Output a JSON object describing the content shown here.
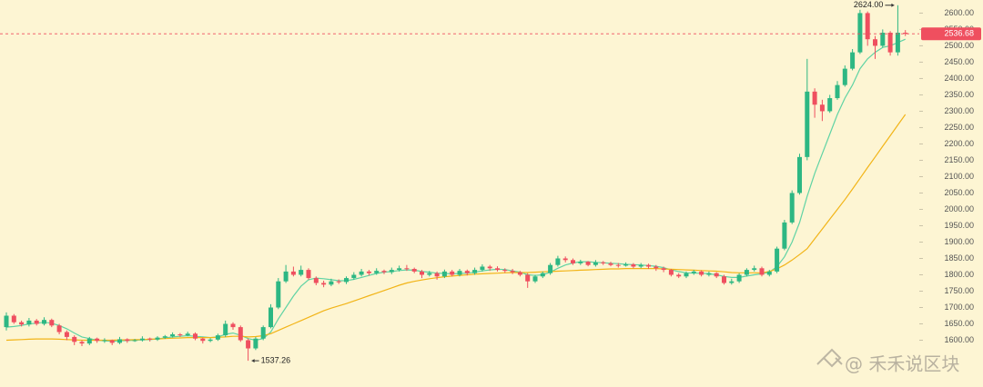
{
  "chart_data": {
    "type": "candlestick",
    "ylim": [
      1457,
      2640
    ],
    "yticks": [
      {
        "value": 1600,
        "label": "1600.00"
      },
      {
        "value": 1650,
        "label": "1650.00"
      },
      {
        "value": 1700,
        "label": "1700.00"
      },
      {
        "value": 1750,
        "label": "1750.00"
      },
      {
        "value": 1800,
        "label": "1800.00"
      },
      {
        "value": 1850,
        "label": "1850.00"
      },
      {
        "value": 1900,
        "label": "1900.00"
      },
      {
        "value": 1950,
        "label": "1950.00"
      },
      {
        "value": 2000,
        "label": "2000.00"
      },
      {
        "value": 2050,
        "label": "2050.00"
      },
      {
        "value": 2100,
        "label": "2100.00"
      },
      {
        "value": 2150,
        "label": "2150.00"
      },
      {
        "value": 2200,
        "label": "2200.00"
      },
      {
        "value": 2250,
        "label": "2250.00"
      },
      {
        "value": 2300,
        "label": "2300.00"
      },
      {
        "value": 2350,
        "label": "2350.00"
      },
      {
        "value": 2400,
        "label": "2400.00"
      },
      {
        "value": 2450,
        "label": "2450.00"
      },
      {
        "value": 2500,
        "label": "2500.00"
      },
      {
        "value": 2550,
        "label": "2550.00"
      },
      {
        "value": 2600,
        "label": "2600.00"
      }
    ],
    "up_color": "#2db783",
    "down_color": "#ef4f5f",
    "open": [
      1640,
      1675,
      1655,
      1648,
      1660,
      1650,
      1662,
      1645,
      1625,
      1610,
      1595,
      1590,
      1605,
      1598,
      1600,
      1592,
      1603,
      1598,
      1600,
      1605,
      1602,
      1608,
      1612,
      1618,
      1615,
      1620,
      1605,
      1598,
      1602,
      1615,
      1650,
      1640,
      1600,
      1575,
      1605,
      1640,
      1700,
      1780,
      1810,
      1800,
      1815,
      1790,
      1775,
      1770,
      1780,
      1778,
      1790,
      1800,
      1810,
      1805,
      1812,
      1808,
      1815,
      1820,
      1818,
      1810,
      1800,
      1805,
      1795,
      1810,
      1800,
      1812,
      1805,
      1815,
      1825,
      1820,
      1815,
      1812,
      1808,
      1800,
      1780,
      1795,
      1805,
      1830,
      1850,
      1845,
      1835,
      1840,
      1830,
      1838,
      1835,
      1830,
      1828,
      1832,
      1825,
      1830,
      1825,
      1820,
      1815,
      1800,
      1795,
      1805,
      1810,
      1800,
      1805,
      1795,
      1775,
      1780,
      1800,
      1815,
      1820,
      1800,
      1810,
      1880,
      1960,
      2050,
      2160,
      2360,
      2320,
      2300,
      2340,
      2380,
      2430,
      2480,
      2600,
      2520,
      2500,
      2540,
      2480,
      2540
    ],
    "high": [
      1685,
      1680,
      1660,
      1668,
      1665,
      1670,
      1666,
      1650,
      1630,
      1615,
      1600,
      1610,
      1608,
      1606,
      1602,
      1610,
      1606,
      1604,
      1612,
      1608,
      1612,
      1616,
      1624,
      1622,
      1626,
      1624,
      1608,
      1606,
      1620,
      1660,
      1655,
      1645,
      1605,
      1610,
      1645,
      1710,
      1790,
      1830,
      1825,
      1828,
      1820,
      1795,
      1782,
      1788,
      1786,
      1795,
      1808,
      1818,
      1815,
      1820,
      1816,
      1822,
      1828,
      1830,
      1822,
      1815,
      1812,
      1810,
      1816,
      1815,
      1818,
      1816,
      1822,
      1832,
      1830,
      1826,
      1820,
      1818,
      1812,
      1805,
      1800,
      1810,
      1836,
      1858,
      1856,
      1850,
      1846,
      1842,
      1845,
      1842,
      1840,
      1836,
      1838,
      1836,
      1836,
      1834,
      1830,
      1825,
      1818,
      1805,
      1810,
      1815,
      1814,
      1810,
      1808,
      1800,
      1788,
      1805,
      1820,
      1828,
      1825,
      1815,
      1886,
      1968,
      2058,
      2170,
      2460,
      2370,
      2335,
      2350,
      2392,
      2440,
      2490,
      2610,
      2605,
      2530,
      2550,
      2545,
      2624,
      2548
    ],
    "low": [
      1630,
      1650,
      1642,
      1642,
      1645,
      1645,
      1640,
      1618,
      1600,
      1585,
      1582,
      1585,
      1592,
      1592,
      1585,
      1588,
      1592,
      1595,
      1596,
      1596,
      1598,
      1604,
      1608,
      1610,
      1612,
      1600,
      1590,
      1594,
      1598,
      1610,
      1632,
      1595,
      1537.26,
      1570,
      1600,
      1636,
      1695,
      1775,
      1795,
      1795,
      1785,
      1768,
      1762,
      1765,
      1772,
      1772,
      1785,
      1795,
      1798,
      1800,
      1802,
      1802,
      1810,
      1812,
      1805,
      1790,
      1795,
      1785,
      1790,
      1795,
      1795,
      1798,
      1800,
      1810,
      1812,
      1810,
      1806,
      1802,
      1795,
      1760,
      1775,
      1790,
      1800,
      1825,
      1838,
      1830,
      1830,
      1826,
      1825,
      1830,
      1826,
      1822,
      1825,
      1820,
      1820,
      1818,
      1812,
      1808,
      1795,
      1790,
      1790,
      1800,
      1795,
      1795,
      1790,
      1770,
      1770,
      1775,
      1795,
      1810,
      1795,
      1795,
      1805,
      1875,
      1955,
      2045,
      2150,
      2280,
      2270,
      2295,
      2335,
      2375,
      2425,
      2475,
      2500,
      2460,
      2495,
      2470,
      2470,
      2530
    ],
    "close": [
      1675,
      1655,
      1648,
      1660,
      1650,
      1662,
      1645,
      1625,
      1610,
      1595,
      1590,
      1605,
      1598,
      1600,
      1592,
      1603,
      1598,
      1600,
      1605,
      1602,
      1608,
      1612,
      1618,
      1615,
      1620,
      1605,
      1598,
      1602,
      1615,
      1650,
      1640,
      1600,
      1575,
      1605,
      1640,
      1700,
      1780,
      1810,
      1800,
      1815,
      1790,
      1775,
      1770,
      1780,
      1778,
      1790,
      1800,
      1810,
      1805,
      1812,
      1808,
      1815,
      1820,
      1818,
      1810,
      1800,
      1805,
      1795,
      1810,
      1800,
      1812,
      1805,
      1815,
      1825,
      1820,
      1815,
      1812,
      1808,
      1800,
      1780,
      1795,
      1805,
      1830,
      1850,
      1845,
      1835,
      1840,
      1830,
      1838,
      1835,
      1830,
      1828,
      1832,
      1825,
      1830,
      1825,
      1820,
      1815,
      1800,
      1795,
      1805,
      1810,
      1800,
      1805,
      1795,
      1775,
      1780,
      1800,
      1815,
      1820,
      1800,
      1810,
      1880,
      1960,
      2050,
      2160,
      2360,
      2320,
      2300,
      2340,
      2380,
      2430,
      2480,
      2600,
      2520,
      2500,
      2540,
      2480,
      2540,
      2536.68
    ],
    "moving_averages": [
      {
        "color": "#5fd3a4",
        "values": [
          1640,
          1642,
          1645,
          1650,
          1652,
          1655,
          1652,
          1645,
          1635,
          1622,
          1610,
          1605,
          1600,
          1598,
          1597,
          1598,
          1599,
          1600,
          1601,
          1602,
          1604,
          1607,
          1610,
          1612,
          1614,
          1612,
          1610,
          1608,
          1610,
          1618,
          1622,
          1615,
          1605,
          1600,
          1605,
          1625,
          1665,
          1700,
          1735,
          1765,
          1785,
          1790,
          1788,
          1785,
          1782,
          1782,
          1786,
          1792,
          1798,
          1804,
          1808,
          1810,
          1813,
          1815,
          1814,
          1810,
          1808,
          1805,
          1804,
          1803,
          1804,
          1805,
          1808,
          1812,
          1815,
          1817,
          1816,
          1812,
          1808,
          1800,
          1798,
          1800,
          1808,
          1820,
          1830,
          1836,
          1840,
          1840,
          1838,
          1837,
          1835,
          1834,
          1832,
          1831,
          1830,
          1828,
          1826,
          1822,
          1815,
          1810,
          1806,
          1805,
          1805,
          1803,
          1800,
          1795,
          1792,
          1792,
          1796,
          1800,
          1803,
          1808,
          1825,
          1855,
          1900,
          1960,
          2040,
          2110,
          2170,
          2230,
          2290,
          2340,
          2380,
          2430,
          2460,
          2480,
          2495,
          2500,
          2510,
          2520
        ]
      },
      {
        "color": "#f2b417",
        "values": [
          1600,
          1601,
          1602,
          1603,
          1604,
          1604,
          1604,
          1603,
          1602,
          1601,
          1600,
          1600,
          1600,
          1600,
          1600,
          1601,
          1601,
          1602,
          1602,
          1603,
          1604,
          1605,
          1606,
          1607,
          1608,
          1608,
          1608,
          1608,
          1609,
          1610,
          1612,
          1612,
          1610,
          1611,
          1614,
          1620,
          1630,
          1640,
          1650,
          1660,
          1670,
          1680,
          1690,
          1698,
          1705,
          1712,
          1720,
          1728,
          1736,
          1744,
          1752,
          1760,
          1768,
          1775,
          1780,
          1784,
          1788,
          1791,
          1794,
          1796,
          1798,
          1800,
          1802,
          1803,
          1804,
          1805,
          1806,
          1807,
          1807,
          1807,
          1808,
          1809,
          1810,
          1811,
          1812,
          1813,
          1814,
          1815,
          1816,
          1817,
          1818,
          1818,
          1819,
          1819,
          1819,
          1819,
          1819,
          1818,
          1817,
          1816,
          1815,
          1814,
          1813,
          1812,
          1811,
          1809,
          1807,
          1806,
          1806,
          1806,
          1806,
          1810,
          1818,
          1830,
          1845,
          1862,
          1880,
          1910,
          1940,
          1970,
          2000,
          2030,
          2062,
          2095,
          2128,
          2160,
          2193,
          2225,
          2258,
          2290
        ]
      }
    ],
    "annotations": [
      {
        "value": 2624,
        "label": "2624.00"
      },
      {
        "value": 1537.26,
        "label": "1537.26"
      }
    ],
    "watermark": "@ 禾禾说区块"
  }
}
